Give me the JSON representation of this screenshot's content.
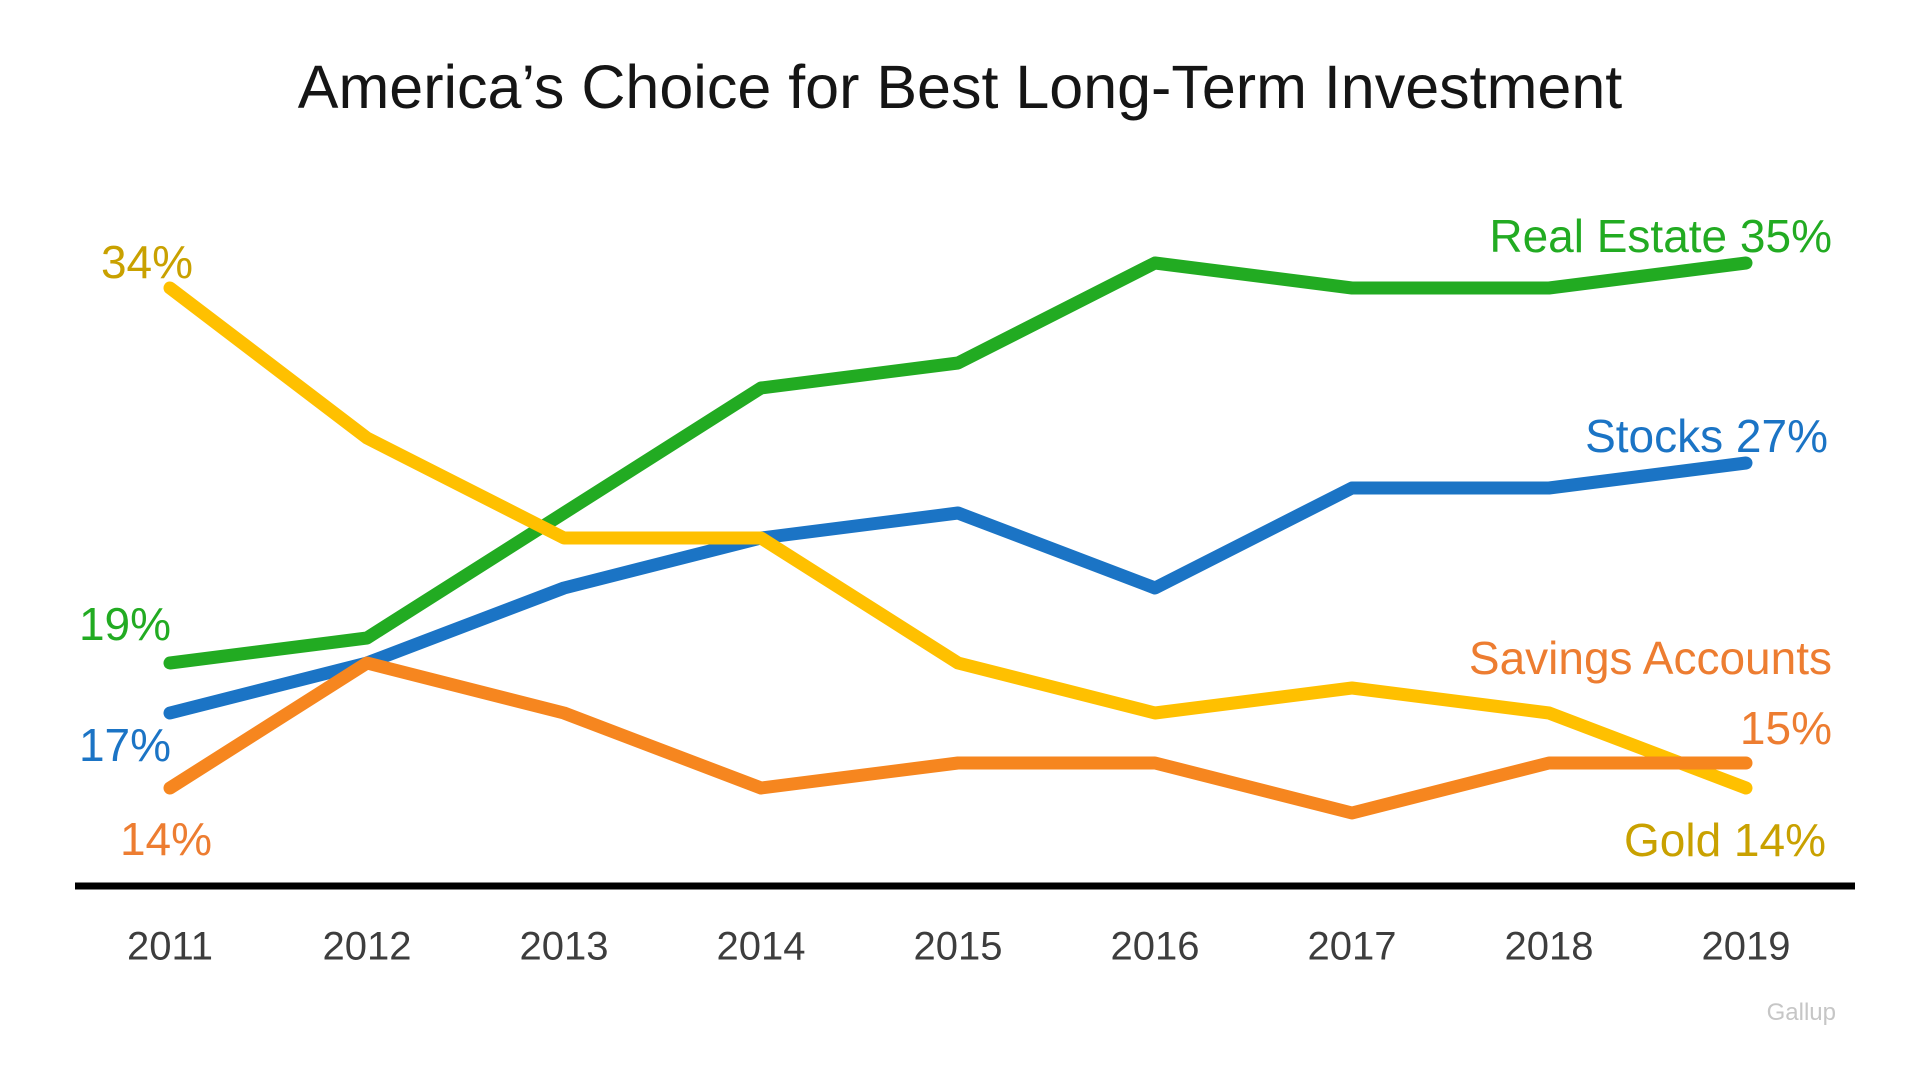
{
  "page": {
    "title": "America’s Choice for Best Long-Term Investment",
    "source_watermark": "Gallup"
  },
  "chart_data": {
    "type": "line",
    "title": "America’s Choice for Best Long-Term Investment",
    "x": [
      2011,
      2012,
      2013,
      2014,
      2015,
      2016,
      2017,
      2018,
      2019
    ],
    "xlabel": "",
    "ylabel": "",
    "units": "percent",
    "grid": false,
    "y_axis_visible": false,
    "x_axis_line": true,
    "legend_position": "inline-annotations",
    "ylim": [
      10,
      38
    ],
    "series": [
      {
        "name": "Real Estate",
        "color": "#22AB22",
        "values": [
          19,
          20,
          25,
          30,
          31,
          35,
          34,
          34,
          35
        ],
        "start_label": "19%",
        "end_label": "Real Estate 35%"
      },
      {
        "name": "Stocks",
        "color": "#1B74C5",
        "values": [
          17,
          19,
          22,
          24,
          25,
          22,
          26,
          26,
          27
        ],
        "start_label": "17%",
        "end_label": "Stocks 27%"
      },
      {
        "name": "Gold",
        "color": "#FFC000",
        "text_color": "#C9A100",
        "values": [
          34,
          28,
          24,
          24,
          19,
          17,
          18,
          17,
          14
        ],
        "start_label": "34%",
        "end_label": "Gold 14%"
      },
      {
        "name": "Savings Accounts",
        "color": "#F6861F",
        "text_color": "#ED7D31",
        "values": [
          14,
          19,
          17,
          14,
          15,
          15,
          13,
          15,
          15
        ],
        "start_label": "14%",
        "end_label": "Savings Accounts 15%"
      }
    ]
  },
  "annotations": [
    {
      "id": "start-gold",
      "text": "34%",
      "color": "#C9A100"
    },
    {
      "id": "start-real-estate",
      "text": "19%",
      "color": "#22AB22"
    },
    {
      "id": "start-stocks",
      "text": "17%",
      "color": "#1B74C5"
    },
    {
      "id": "start-savings",
      "text": "14%",
      "color": "#ED7D31"
    },
    {
      "id": "end-real-estate",
      "text": "Real Estate 35%",
      "color": "#22AB22"
    },
    {
      "id": "end-stocks",
      "text": "Stocks 27%",
      "color": "#1B74C5"
    },
    {
      "id": "end-savings-line1",
      "text": "Savings Accounts",
      "color": "#ED7D31"
    },
    {
      "id": "end-savings-line2",
      "text": "15%",
      "color": "#ED7D31"
    },
    {
      "id": "end-gold",
      "text": "Gold 14%",
      "color": "#C9A100"
    }
  ]
}
